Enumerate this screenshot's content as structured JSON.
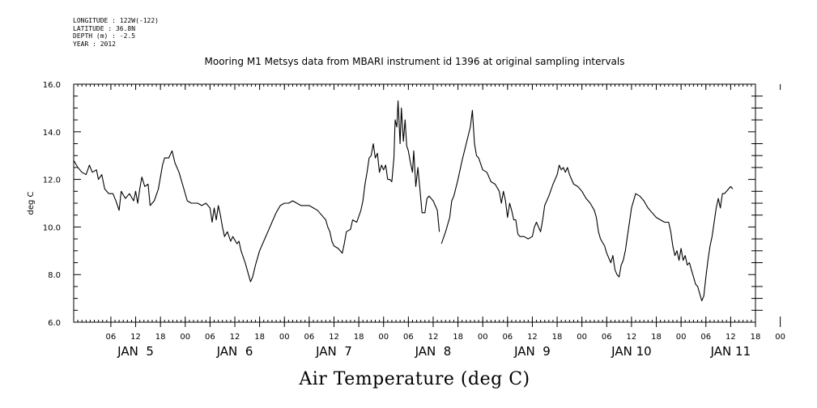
{
  "meta_lines": [
    {
      "label": "LONGITUDE",
      "value": "122W(-122)"
    },
    {
      "label": "LATITUDE",
      "value": "36.8N"
    },
    {
      "label": "DEPTH (m)",
      "value": "-2.5"
    },
    {
      "label": "YEAR",
      "value": "2012"
    }
  ],
  "chart_data": {
    "type": "line",
    "title": "Mooring M1 Metsys data from MBARI instrument id 1396 at original sampling intervals",
    "xlabel": "Air Temperature (deg C)",
    "ylabel": "deg C",
    "ylim": [
      6.0,
      16.0
    ],
    "yticks": [
      "6.0",
      "8.0",
      "10.0",
      "12.0",
      "14.0",
      "16.0"
    ],
    "xlim_hours": [
      0,
      165
    ],
    "x_start": "2012-01-04 21:00",
    "x_units": "hours since x_start",
    "x_tick_labels": [
      "06",
      "12",
      "18",
      "00",
      "06",
      "12",
      "18",
      "00",
      "06",
      "12",
      "18",
      "00",
      "06",
      "12",
      "18",
      "00",
      "06",
      "12",
      "18",
      "00",
      "06",
      "12",
      "18",
      "00",
      "06",
      "12",
      "18",
      "00"
    ],
    "day_labels": [
      "JAN  5",
      "JAN  6",
      "JAN  7",
      "JAN  8",
      "JAN  9",
      "JAN 10",
      "JAN 11"
    ],
    "grid": false,
    "series": [
      {
        "name": "",
        "segments": [
          [
            [
              0.0,
              12.8
            ],
            [
              1.0,
              12.5
            ],
            [
              2.0,
              12.3
            ],
            [
              3.0,
              12.2
            ],
            [
              3.8,
              12.6
            ],
            [
              4.5,
              12.3
            ],
            [
              5.5,
              12.4
            ],
            [
              6.0,
              12.0
            ],
            [
              6.8,
              12.2
            ],
            [
              7.5,
              11.6
            ],
            [
              8.5,
              11.4
            ],
            [
              9.5,
              11.4
            ],
            [
              10.2,
              11.1
            ],
            [
              11.0,
              10.7
            ],
            [
              11.5,
              11.5
            ],
            [
              12.5,
              11.2
            ],
            [
              13.5,
              11.4
            ],
            [
              14.5,
              11.1
            ],
            [
              15.0,
              11.5
            ],
            [
              15.5,
              11.0
            ],
            [
              16.0,
              11.6
            ],
            [
              16.5,
              12.1
            ],
            [
              17.2,
              11.7
            ],
            [
              18.0,
              11.8
            ],
            [
              18.5,
              10.9
            ],
            [
              19.5,
              11.1
            ],
            [
              20.5,
              11.6
            ],
            [
              21.5,
              12.6
            ],
            [
              22.0,
              12.9
            ],
            [
              23.0,
              12.9
            ],
            [
              23.8,
              13.2
            ],
            [
              24.5,
              12.7
            ],
            [
              25.5,
              12.3
            ],
            [
              26.5,
              11.7
            ],
            [
              27.5,
              11.1
            ],
            [
              28.5,
              11.0
            ],
            [
              30.0,
              11.0
            ],
            [
              31.0,
              10.9
            ],
            [
              32.0,
              11.0
            ],
            [
              33.0,
              10.8
            ],
            [
              33.5,
              10.2
            ],
            [
              34.0,
              10.8
            ],
            [
              34.5,
              10.3
            ],
            [
              35.0,
              10.9
            ],
            [
              35.5,
              10.5
            ],
            [
              36.0,
              10.0
            ],
            [
              36.5,
              9.6
            ],
            [
              37.2,
              9.8
            ],
            [
              38.0,
              9.4
            ],
            [
              38.5,
              9.6
            ],
            [
              39.5,
              9.3
            ],
            [
              40.0,
              9.4
            ],
            [
              40.5,
              9.0
            ],
            [
              41.5,
              8.5
            ],
            [
              42.3,
              8.0
            ],
            [
              42.8,
              7.7
            ],
            [
              43.3,
              7.9
            ],
            [
              44.0,
              8.4
            ],
            [
              45.0,
              9.0
            ],
            [
              46.0,
              9.4
            ],
            [
              47.0,
              9.8
            ],
            [
              48.0,
              10.2
            ],
            [
              49.0,
              10.6
            ],
            [
              50.0,
              10.9
            ],
            [
              51.0,
              11.0
            ],
            [
              52.0,
              11.0
            ],
            [
              53.0,
              11.1
            ],
            [
              54.0,
              11.0
            ],
            [
              55.0,
              10.9
            ],
            [
              56.0,
              10.9
            ],
            [
              57.0,
              10.9
            ],
            [
              58.0,
              10.8
            ],
            [
              59.0,
              10.7
            ],
            [
              60.0,
              10.5
            ],
            [
              61.0,
              10.3
            ],
            [
              61.5,
              10.0
            ],
            [
              62.0,
              9.8
            ],
            [
              62.5,
              9.4
            ],
            [
              63.0,
              9.2
            ],
            [
              64.0,
              9.1
            ],
            [
              65.0,
              8.9
            ],
            [
              65.5,
              9.3
            ],
            [
              66.0,
              9.8
            ],
            [
              67.0,
              9.9
            ],
            [
              67.5,
              10.3
            ],
            [
              68.5,
              10.2
            ],
            [
              69.5,
              10.7
            ],
            [
              70.0,
              11.1
            ],
            [
              70.5,
              11.8
            ],
            [
              71.0,
              12.3
            ],
            [
              71.5,
              12.9
            ],
            [
              72.0,
              13.0
            ],
            [
              72.5,
              13.5
            ],
            [
              73.0,
              12.9
            ],
            [
              73.5,
              13.1
            ],
            [
              74.0,
              12.3
            ],
            [
              74.5,
              12.6
            ],
            [
              75.0,
              12.4
            ],
            [
              75.5,
              12.6
            ],
            [
              76.0,
              12.0
            ],
            [
              76.5,
              12.0
            ],
            [
              77.0,
              11.9
            ],
            [
              77.5,
              12.9
            ],
            [
              77.8,
              14.5
            ],
            [
              78.2,
              14.2
            ],
            [
              78.5,
              15.3
            ],
            [
              79.0,
              13.5
            ],
            [
              79.3,
              15.0
            ],
            [
              79.8,
              13.6
            ],
            [
              80.2,
              14.5
            ],
            [
              80.6,
              13.4
            ],
            [
              81.0,
              13.2
            ],
            [
              81.5,
              12.7
            ],
            [
              82.0,
              12.3
            ],
            [
              82.3,
              13.2
            ],
            [
              82.8,
              11.7
            ],
            [
              83.3,
              12.5
            ],
            [
              83.8,
              11.6
            ],
            [
              84.3,
              10.6
            ],
            [
              85.0,
              10.6
            ],
            [
              85.5,
              11.2
            ],
            [
              86.0,
              11.3
            ],
            [
              87.0,
              11.1
            ],
            [
              88.0,
              10.7
            ],
            [
              88.5,
              9.8
            ]
          ],
          [
            [
              89.0,
              9.3
            ],
            [
              90.0,
              9.8
            ],
            [
              91.0,
              10.4
            ],
            [
              91.5,
              11.1
            ],
            [
              92.0,
              11.3
            ],
            [
              93.0,
              12.0
            ],
            [
              94.0,
              12.8
            ],
            [
              95.0,
              13.5
            ],
            [
              96.0,
              14.2
            ],
            [
              96.5,
              14.9
            ],
            [
              97.0,
              13.5
            ],
            [
              97.5,
              13.0
            ],
            [
              98.0,
              12.9
            ],
            [
              99.0,
              12.4
            ],
            [
              100.0,
              12.3
            ],
            [
              101.0,
              11.9
            ],
            [
              102.0,
              11.8
            ],
            [
              103.0,
              11.5
            ],
            [
              103.5,
              11.0
            ],
            [
              104.0,
              11.5
            ],
            [
              104.5,
              11.1
            ],
            [
              105.0,
              10.4
            ],
            [
              105.5,
              11.0
            ],
            [
              106.0,
              10.7
            ],
            [
              106.5,
              10.3
            ],
            [
              107.0,
              10.3
            ],
            [
              107.5,
              9.7
            ],
            [
              108.0,
              9.6
            ],
            [
              109.0,
              9.6
            ],
            [
              110.0,
              9.5
            ],
            [
              111.0,
              9.6
            ],
            [
              111.5,
              10.0
            ],
            [
              112.0,
              10.2
            ],
            [
              113.0,
              9.8
            ],
            [
              113.5,
              10.3
            ],
            [
              114.0,
              10.9
            ],
            [
              115.0,
              11.3
            ],
            [
              116.0,
              11.8
            ],
            [
              117.0,
              12.2
            ],
            [
              117.5,
              12.6
            ],
            [
              118.0,
              12.4
            ],
            [
              118.5,
              12.5
            ],
            [
              119.0,
              12.3
            ],
            [
              119.5,
              12.5
            ],
            [
              120.0,
              12.2
            ],
            [
              120.5,
              12.0
            ],
            [
              121.0,
              11.8
            ],
            [
              122.0,
              11.7
            ],
            [
              123.0,
              11.5
            ],
            [
              124.0,
              11.2
            ],
            [
              125.0,
              11.0
            ],
            [
              126.0,
              10.7
            ],
            [
              126.5,
              10.4
            ],
            [
              127.0,
              9.8
            ],
            [
              127.5,
              9.5
            ],
            [
              128.5,
              9.2
            ],
            [
              129.0,
              8.9
            ],
            [
              129.5,
              8.7
            ],
            [
              130.0,
              8.5
            ],
            [
              130.5,
              8.8
            ],
            [
              131.0,
              8.2
            ],
            [
              131.5,
              8.0
            ],
            [
              132.0,
              7.9
            ],
            [
              132.5,
              8.4
            ],
            [
              133.0,
              8.6
            ],
            [
              133.5,
              9.0
            ],
            [
              134.0,
              9.6
            ],
            [
              134.5,
              10.2
            ],
            [
              135.0,
              10.8
            ],
            [
              136.0,
              11.4
            ],
            [
              137.0,
              11.3
            ],
            [
              138.0,
              11.1
            ],
            [
              139.0,
              10.8
            ],
            [
              140.0,
              10.6
            ],
            [
              141.0,
              10.4
            ],
            [
              142.0,
              10.3
            ],
            [
              143.0,
              10.2
            ],
            [
              144.0,
              10.2
            ],
            [
              144.5,
              9.8
            ],
            [
              145.0,
              9.2
            ],
            [
              145.5,
              8.8
            ],
            [
              146.0,
              9.0
            ],
            [
              146.5,
              8.6
            ],
            [
              147.0,
              9.1
            ],
            [
              147.5,
              8.6
            ],
            [
              148.0,
              8.8
            ],
            [
              148.5,
              8.4
            ],
            [
              149.0,
              8.5
            ],
            [
              149.5,
              8.2
            ],
            [
              150.0,
              7.9
            ],
            [
              150.5,
              7.6
            ],
            [
              151.0,
              7.5
            ],
            [
              151.5,
              7.2
            ],
            [
              152.0,
              6.9
            ],
            [
              152.5,
              7.1
            ],
            [
              153.0,
              7.9
            ],
            [
              153.5,
              8.6
            ],
            [
              154.0,
              9.2
            ],
            [
              154.5,
              9.6
            ],
            [
              155.0,
              10.2
            ],
            [
              155.5,
              10.8
            ],
            [
              156.0,
              11.2
            ],
            [
              156.5,
              10.8
            ],
            [
              157.0,
              11.4
            ],
            [
              157.5,
              11.4
            ],
            [
              158.5,
              11.6
            ],
            [
              159.0,
              11.7
            ],
            [
              159.5,
              11.6
            ]
          ]
        ]
      }
    ]
  }
}
